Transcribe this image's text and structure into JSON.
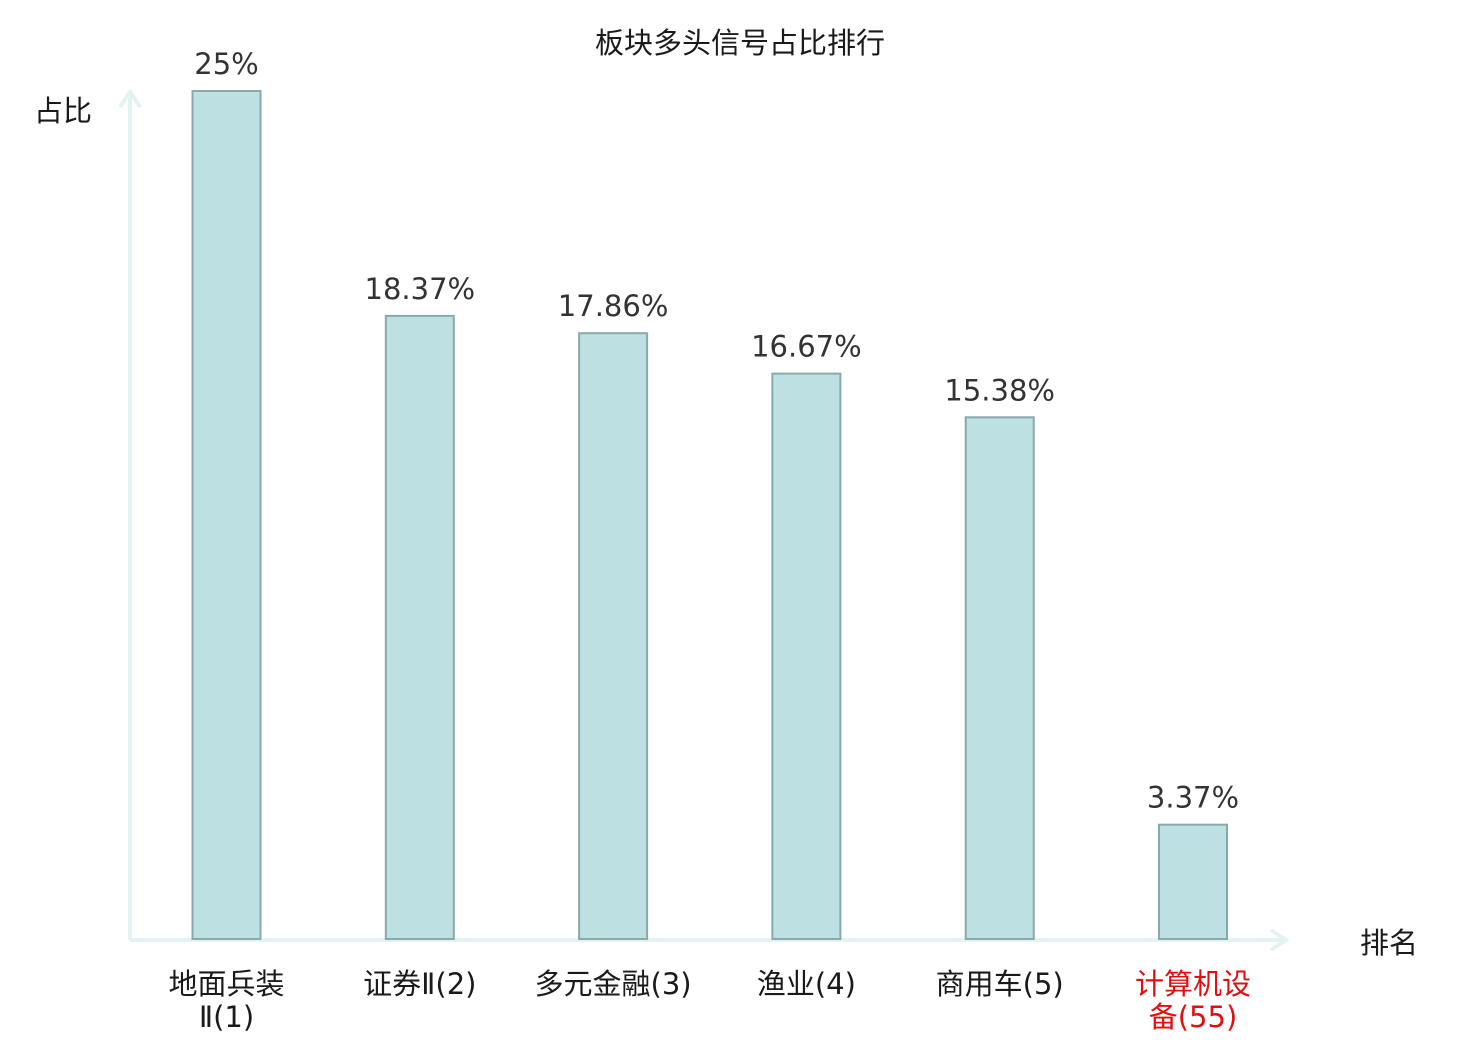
{
  "chart_data": {
    "type": "bar",
    "title": "板块多头信号占比排行",
    "xlabel": "排名",
    "ylabel": "占比",
    "categories": [
      [
        "地面兵装",
        "Ⅱ(1)"
      ],
      [
        "证券Ⅱ(2)"
      ],
      [
        "多元金融(3)"
      ],
      [
        "渔业(4)"
      ],
      [
        "商用车(5)"
      ],
      [
        "计算机设",
        "备(55)"
      ]
    ],
    "values": [
      25,
      18.37,
      17.86,
      16.67,
      15.38,
      3.37
    ],
    "value_labels": [
      "25%",
      "18.37%",
      "17.86%",
      "16.67%",
      "15.38%",
      "3.37%"
    ],
    "highlight_index": 5,
    "ylim": [
      0,
      25
    ],
    "grid": false,
    "legend": "none"
  },
  "colors": {
    "bar_fill": "#bde0e2",
    "bar_stroke": "#8aa9ab",
    "axis": "#e3f3f1",
    "text": "#333333",
    "category_text": "#1a1a1a",
    "highlight_text": "#e01010"
  }
}
